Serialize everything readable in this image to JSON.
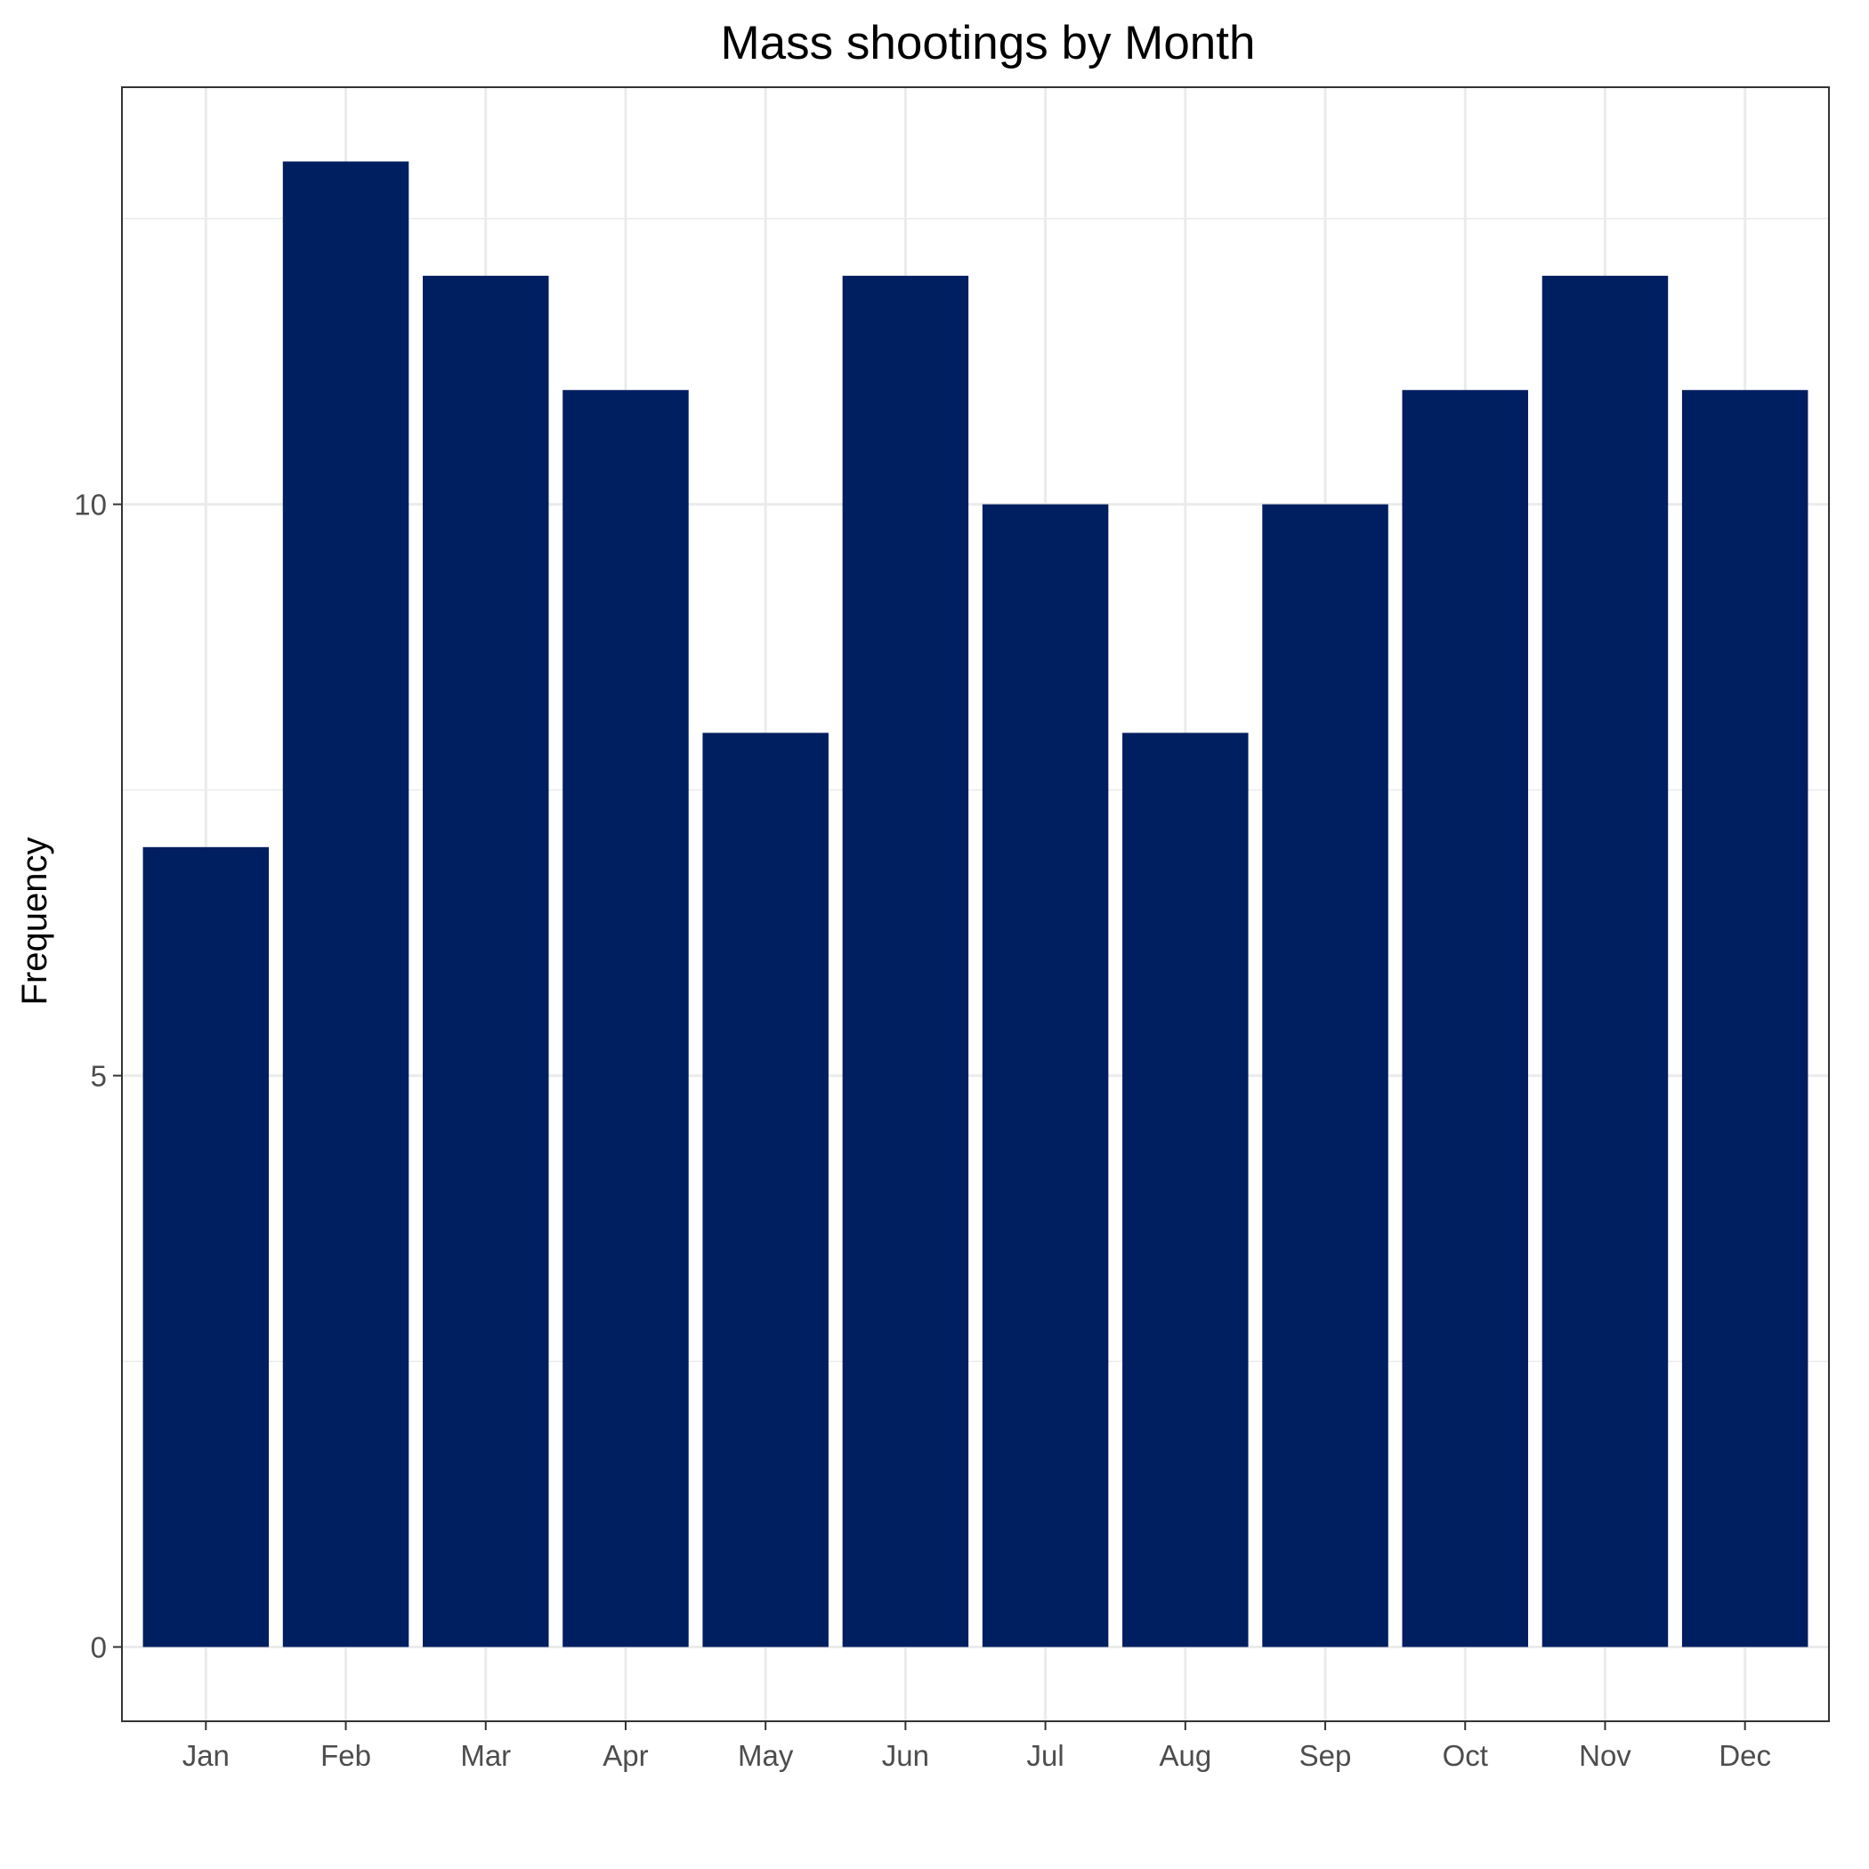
{
  "chart_data": {
    "type": "bar",
    "title": "Mass shootings by Month",
    "xlabel": "",
    "ylabel": "Frequency",
    "categories": [
      "Jan",
      "Feb",
      "Mar",
      "Apr",
      "May",
      "Jun",
      "Jul",
      "Aug",
      "Sep",
      "Oct",
      "Nov",
      "Dec"
    ],
    "values": [
      7,
      13,
      12,
      11,
      8,
      12,
      10,
      8,
      10,
      11,
      12,
      11
    ],
    "ylim": [
      -0.65,
      13.65
    ],
    "yticks": [
      "0",
      "5",
      "10"
    ],
    "grid": true,
    "bar_color": "#001F60",
    "grid_color": "#EBEBEB",
    "panel_border_color": "#333333"
  }
}
